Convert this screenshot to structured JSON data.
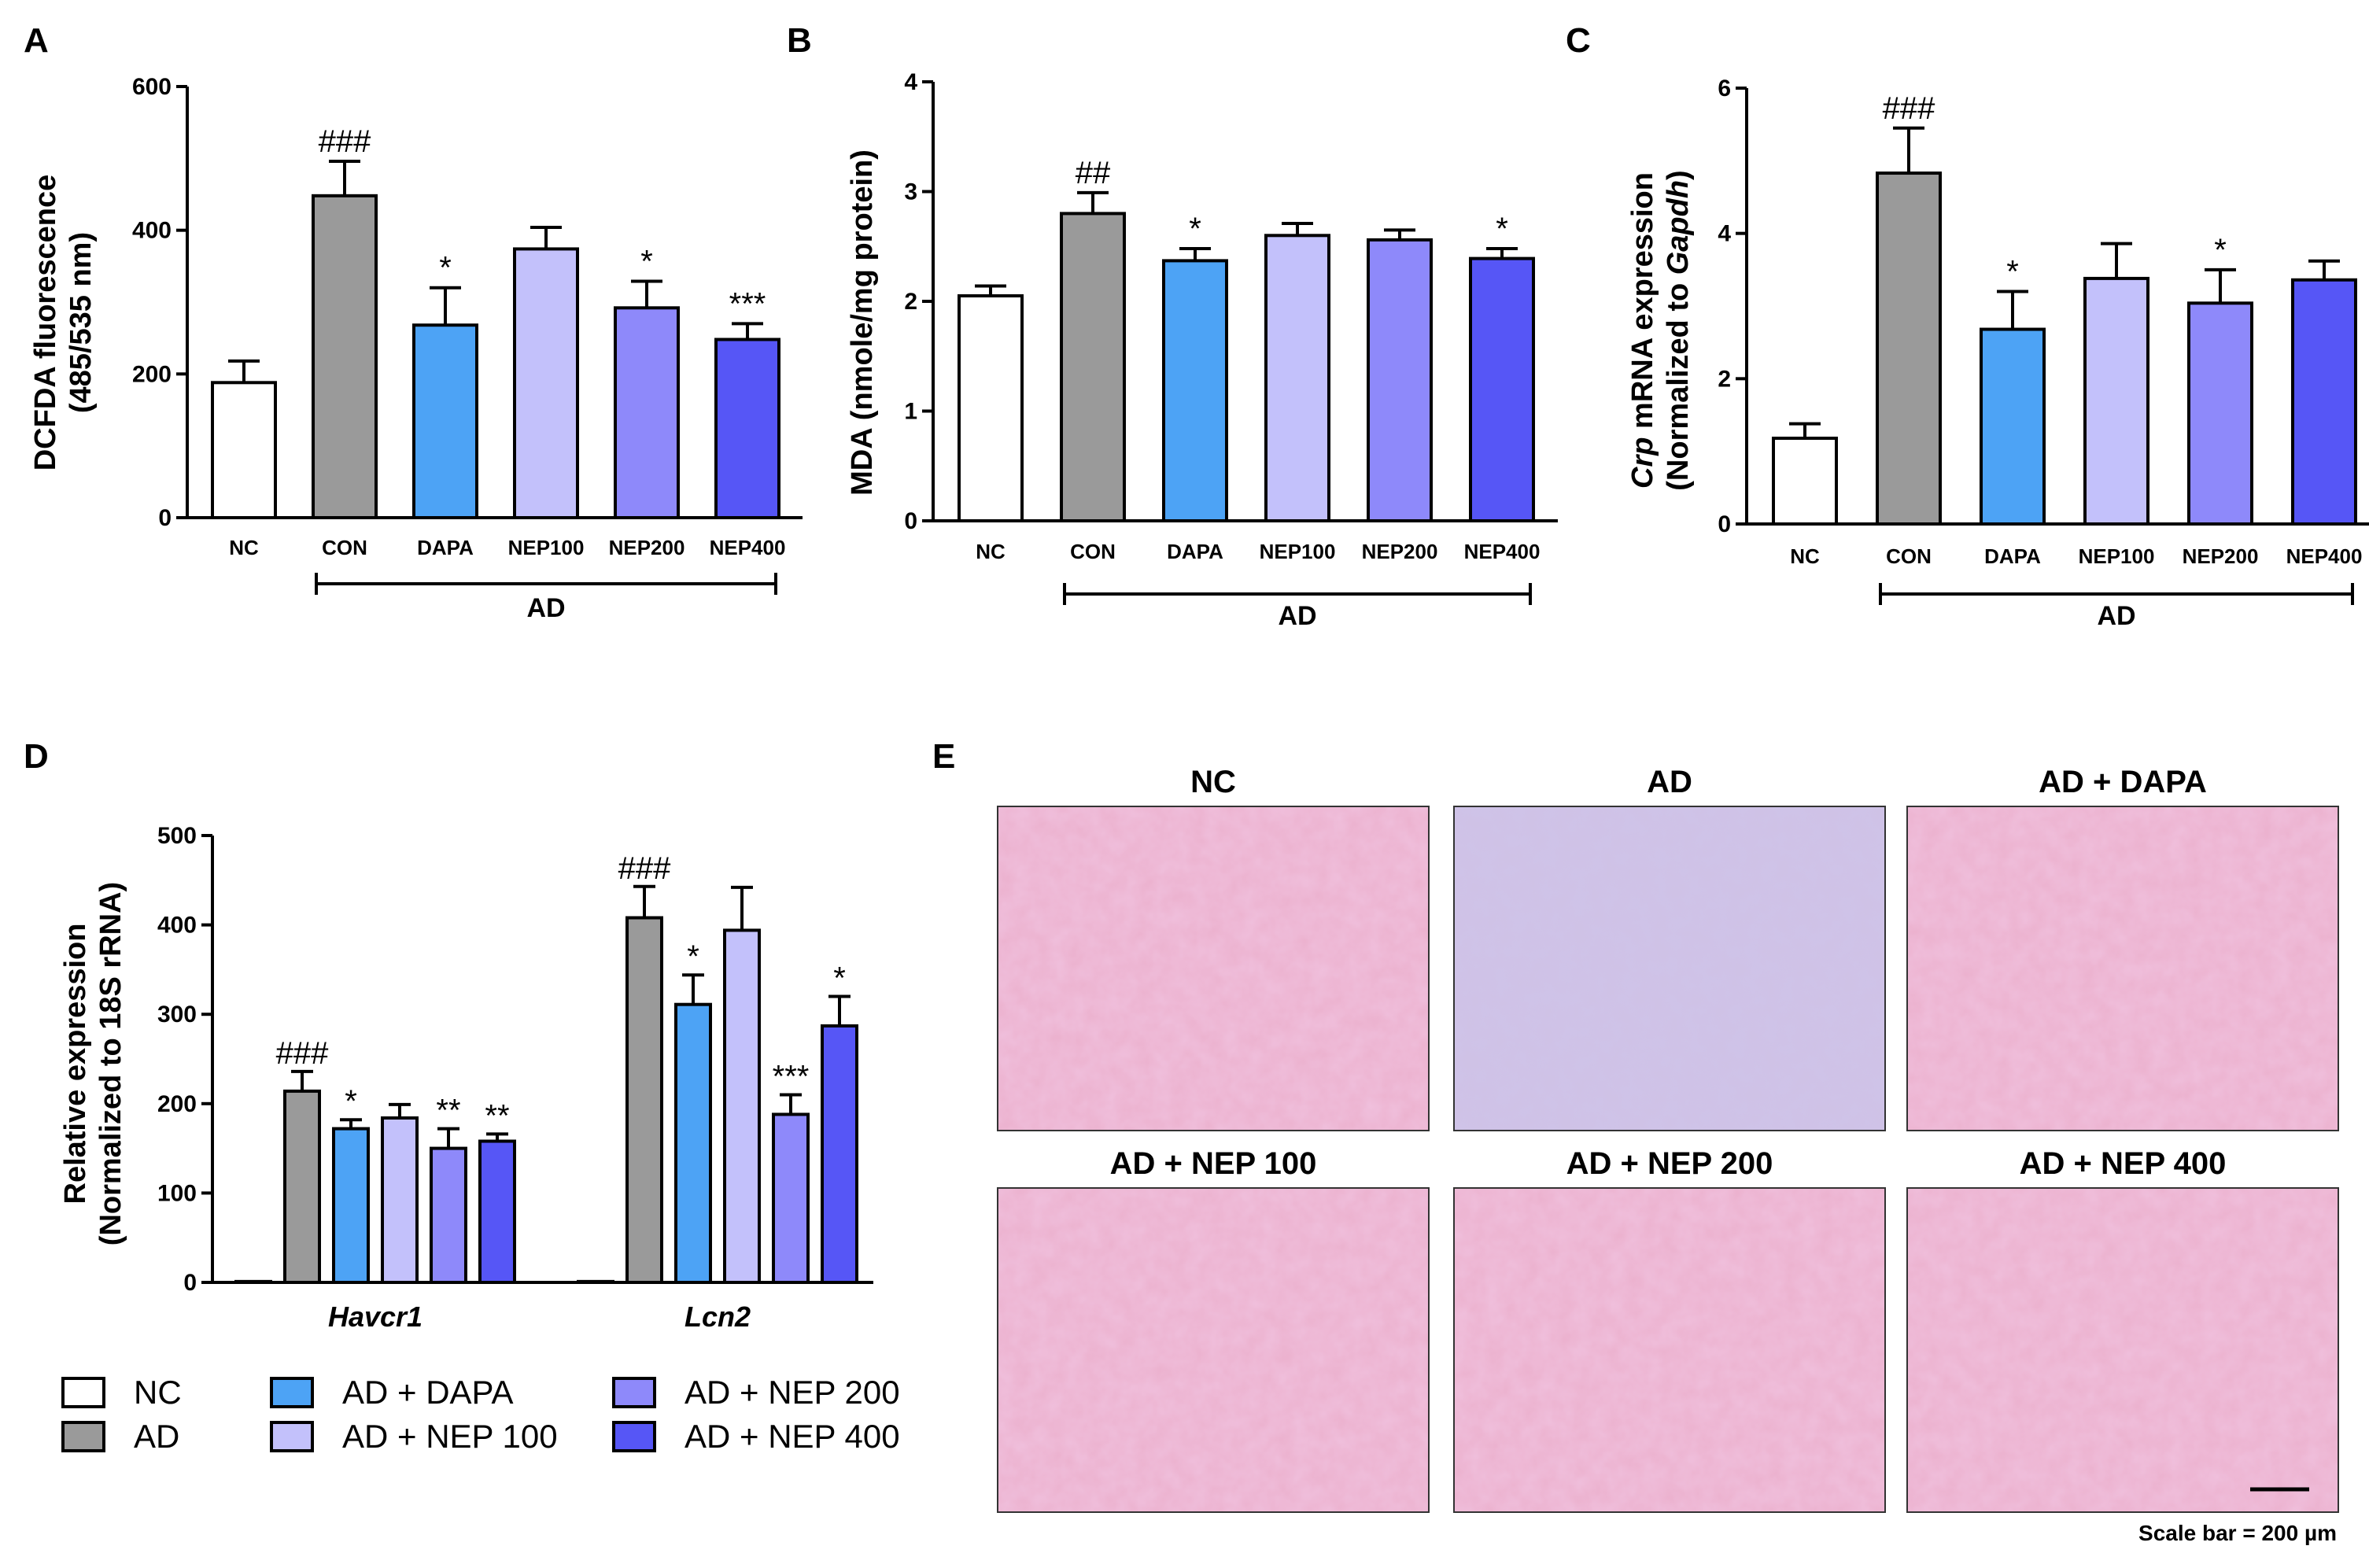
{
  "colors": {
    "NC": "#ffffff",
    "CON": "#9a9a9a",
    "DAPA": "#4da3f5",
    "NEP100": "#c3c1fb",
    "NEP200": "#8e89fa",
    "NEP400": "#5656f6",
    "tissue_pink": "#ecb2cf",
    "tissue_purple": "#cfc2e6"
  },
  "chart_data": [
    {
      "id": "A",
      "type": "bar",
      "panel_label": "A",
      "ylabel_lines": [
        "DCFDA fluorescence",
        "(485/535 nm)"
      ],
      "ylim": [
        0,
        600
      ],
      "yticks": [
        0,
        200,
        400,
        600
      ],
      "categories": [
        "NC",
        "CON",
        "DAPA",
        "NEP100",
        "NEP200",
        "NEP400"
      ],
      "values": [
        188,
        448,
        268,
        374,
        292,
        248
      ],
      "errors": [
        30,
        48,
        52,
        30,
        37,
        22
      ],
      "annotations": [
        "",
        "###",
        "*",
        "",
        "*",
        "***"
      ],
      "group_label": "AD",
      "group_span": [
        "CON",
        "NEP400"
      ]
    },
    {
      "id": "B",
      "type": "bar",
      "panel_label": "B",
      "ylabel_lines": [
        "MDA (nmole/mg protein)"
      ],
      "ylim": [
        0,
        4
      ],
      "yticks": [
        0,
        1,
        2,
        3,
        4
      ],
      "categories": [
        "NC",
        "CON",
        "DAPA",
        "NEP100",
        "NEP200",
        "NEP400"
      ],
      "values": [
        2.05,
        2.8,
        2.37,
        2.6,
        2.56,
        2.39
      ],
      "errors": [
        0.09,
        0.19,
        0.11,
        0.11,
        0.09,
        0.09
      ],
      "annotations": [
        "",
        "##",
        "*",
        "",
        "",
        "*"
      ],
      "group_label": "AD",
      "group_span": [
        "CON",
        "NEP400"
      ]
    },
    {
      "id": "C",
      "type": "bar",
      "panel_label": "C",
      "ylabel_lines": [
        "Crp mRNA expression",
        "(Normalized to Gapdh)"
      ],
      "ylim": [
        0,
        6
      ],
      "yticks": [
        0,
        2,
        4,
        6
      ],
      "categories": [
        "NC",
        "CON",
        "DAPA",
        "NEP100",
        "NEP200",
        "NEP400"
      ],
      "values": [
        1.18,
        4.83,
        2.68,
        3.38,
        3.04,
        3.36
      ],
      "errors": [
        0.2,
        0.62,
        0.52,
        0.48,
        0.46,
        0.26
      ],
      "annotations": [
        "",
        "###",
        "*",
        "",
        "*",
        ""
      ],
      "group_label": "AD",
      "group_span": [
        "CON",
        "NEP400"
      ]
    },
    {
      "id": "D",
      "type": "bar",
      "panel_label": "D",
      "ylabel_lines": [
        "Relative expression",
        "(Normalized to 18S rRNA)"
      ],
      "ylim": [
        0,
        500
      ],
      "yticks": [
        0,
        100,
        200,
        300,
        400,
        500
      ],
      "categories": [
        "Havcr1",
        "Lcn2"
      ],
      "series": [
        {
          "name": "NC",
          "color_key": "NC",
          "values": [
            1,
            1
          ],
          "errors": [
            0,
            0
          ],
          "annotations": [
            "",
            ""
          ]
        },
        {
          "name": "AD",
          "color_key": "CON",
          "values": [
            214,
            408
          ],
          "errors": [
            22,
            35
          ],
          "annotations": [
            "###",
            "###"
          ]
        },
        {
          "name": "AD + DAPA",
          "color_key": "DAPA",
          "values": [
            172,
            311
          ],
          "errors": [
            10,
            33
          ],
          "annotations": [
            "*",
            "*"
          ]
        },
        {
          "name": "AD + NEP 100",
          "color_key": "NEP100",
          "values": [
            184,
            394
          ],
          "errors": [
            15,
            48
          ],
          "annotations": [
            "",
            ""
          ]
        },
        {
          "name": "AD + NEP 200",
          "color_key": "NEP200",
          "values": [
            150,
            188
          ],
          "errors": [
            22,
            22
          ],
          "annotations": [
            "**",
            "***"
          ]
        },
        {
          "name": "AD + NEP 400",
          "color_key": "NEP400",
          "values": [
            158,
            287
          ],
          "errors": [
            8,
            33
          ],
          "annotations": [
            "**",
            "*"
          ]
        }
      ],
      "legend_columns": [
        [
          "NC",
          "AD"
        ],
        [
          "AD + DAPA",
          "AD + NEP 100"
        ],
        [
          "AD + NEP 200",
          "AD + NEP 400"
        ]
      ]
    }
  ],
  "panelE": {
    "panel_label": "E",
    "images": [
      {
        "title": "NC",
        "tone": "pink"
      },
      {
        "title": "AD",
        "tone": "purple"
      },
      {
        "title": "AD + DAPA",
        "tone": "pink"
      },
      {
        "title": "AD + NEP 100",
        "tone": "pink"
      },
      {
        "title": "AD + NEP 200",
        "tone": "pink"
      },
      {
        "title": "AD + NEP 400",
        "tone": "pink"
      }
    ],
    "scale_label": "Scale bar = 200 µm"
  }
}
